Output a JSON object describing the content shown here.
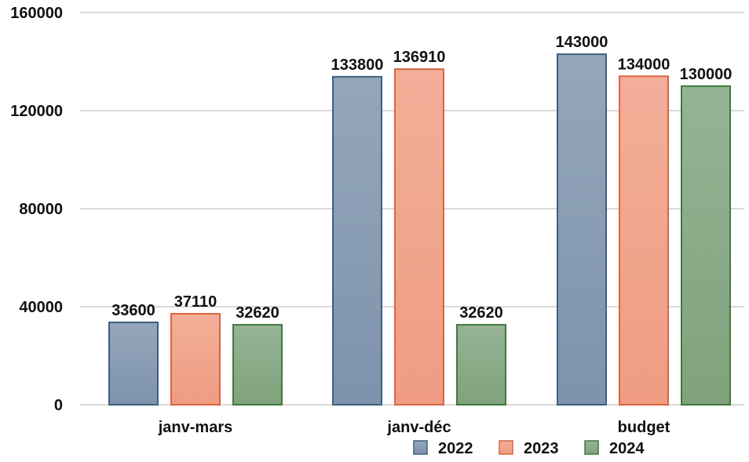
{
  "chart_data": {
    "type": "bar",
    "categories": [
      "janv-mars",
      "janv-déc",
      "budget"
    ],
    "series": [
      {
        "name": "2022",
        "values": [
          33600,
          133800,
          143000
        ],
        "color": "#7d93ac"
      },
      {
        "name": "2023",
        "values": [
          37110,
          136910,
          134000
        ],
        "color": "#ef9c82"
      },
      {
        "name": "2024",
        "values": [
          32620,
          32620,
          130000
        ],
        "color": "#7fa27c"
      }
    ],
    "data_labels": [
      [
        "33600",
        "133800",
        "143000"
      ],
      [
        "37110",
        "136910",
        "134000"
      ],
      [
        "32620",
        "32620",
        "130000"
      ]
    ],
    "yticks": [
      0,
      40000,
      80000,
      120000,
      160000
    ],
    "ytick_labels": [
      "0",
      "40000",
      "80000",
      "120000",
      "160000"
    ],
    "ylim": [
      0,
      160000
    ],
    "title": "",
    "xlabel": "",
    "ylabel": "",
    "grid": "horizontal",
    "legend_position": "bottom-right",
    "colors": {
      "grid": "#d9d9d9",
      "series_stroke": [
        "#3e5f80",
        "#d8663f",
        "#3f7a3c"
      ]
    }
  }
}
